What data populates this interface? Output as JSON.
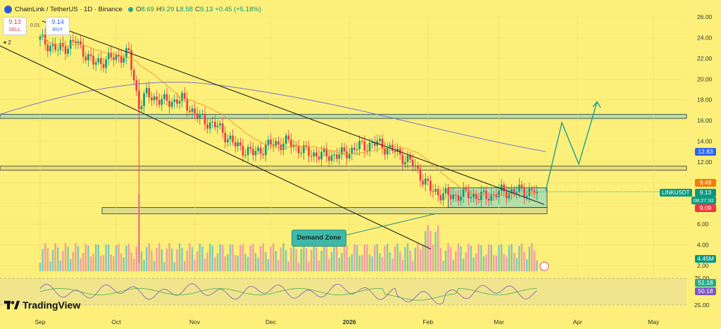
{
  "header": {
    "title": "ChainLink / TetherUS · 1D · Binance",
    "ohlc": [
      {
        "k": "O",
        "v": "8.69"
      },
      {
        "k": "H",
        "v": "9.29"
      },
      {
        "k": "L",
        "v": "8.58"
      },
      {
        "k": "C",
        "v": "9.13"
      },
      {
        "k": "",
        "v": "+0.45 (+5.18%)"
      }
    ]
  },
  "trade": {
    "sell_price": "9.13",
    "sell_label": "SELL",
    "buy_price": "9.14",
    "buy_label": "BUY",
    "spread": "0.01",
    "lots": "2"
  },
  "brand": {
    "name": "TradingView"
  },
  "annotation": {
    "demand_zone": "Demand Zone"
  },
  "price_labels": {
    "upper_box": "12.83",
    "level_red_up": "9.49",
    "symbol": "LINKUSDT",
    "last": "9.13",
    "countdown": "08:27:32",
    "level_red_down": "9.09",
    "volume": "4.45M",
    "rsi_a": "51.18",
    "rsi_b": "50.18"
  },
  "colors": {
    "background": "#fcf07a",
    "up": "#089981",
    "down": "#f23645",
    "ma_fast": "#f59a3c",
    "ma_slow": "#7b74c9",
    "zone_fill": "#a6dcb0",
    "projection": "#1f9e8a"
  },
  "chart_data": {
    "type": "candlestick",
    "symbol": "LINKUSDT",
    "price_axis": {
      "min": 2.0,
      "max": 26.0,
      "ticks": [
        "26.00",
        "24.00",
        "22.00",
        "20.00",
        "18.00",
        "16.00",
        "14.00",
        "12.00",
        "10.00",
        "8.00",
        "6.00",
        "4.00",
        "2.00"
      ]
    },
    "time_axis": {
      "labels": [
        "Sep",
        "Oct",
        "Nov",
        "Dec",
        "2026",
        "Feb",
        "Mar",
        "Apr",
        "May"
      ]
    },
    "close_path": [
      [
        "Sep 01",
        23.8
      ],
      [
        "Sep 08",
        22.8
      ],
      [
        "Sep 15",
        23.6
      ],
      [
        "Sep 22",
        21.5
      ],
      [
        "Sep 29",
        22.0
      ],
      [
        "Oct 06",
        22.4
      ],
      [
        "Oct 10",
        17.5
      ],
      [
        "Oct 13",
        18.5
      ],
      [
        "Oct 20",
        17.8
      ],
      [
        "Oct 27",
        18.0
      ],
      [
        "Nov 03",
        16.2
      ],
      [
        "Nov 10",
        15.4
      ],
      [
        "Nov 17",
        13.6
      ],
      [
        "Nov 24",
        12.8
      ],
      [
        "Dec 01",
        13.7
      ],
      [
        "Dec 08",
        13.9
      ],
      [
        "Dec 15",
        12.9
      ],
      [
        "Dec 22",
        12.6
      ],
      [
        "Dec 29",
        12.7
      ],
      [
        "Jan 05",
        13.5
      ],
      [
        "Jan 12",
        13.8
      ],
      [
        "Jan 19",
        13.0
      ],
      [
        "Jan 26",
        11.8
      ],
      [
        "Feb 02",
        9.3
      ],
      [
        "Feb 09",
        8.7
      ],
      [
        "Feb 16",
        8.9
      ],
      [
        "Feb 23",
        8.6
      ],
      [
        "Mar 02",
        9.1
      ],
      [
        "Mar 09",
        9.2
      ],
      [
        "Mar 16",
        9.13
      ]
    ],
    "zones": [
      {
        "name": "upper resistance",
        "low": 16.2,
        "high": 16.6
      },
      {
        "name": "resistance",
        "low": 11.2,
        "high": 11.6
      },
      {
        "name": "demand zone",
        "low": 7.6,
        "high": 9.5
      },
      {
        "name": "support",
        "low": 7.0,
        "high": 7.6
      }
    ],
    "projection": [
      9.2,
      15.8,
      11.8,
      17.8
    ],
    "indicators": {
      "volume_last": "4.45M",
      "rsi": [
        51.18,
        50.18
      ],
      "rsi_levels": [
        75.0,
        25.0
      ]
    }
  }
}
